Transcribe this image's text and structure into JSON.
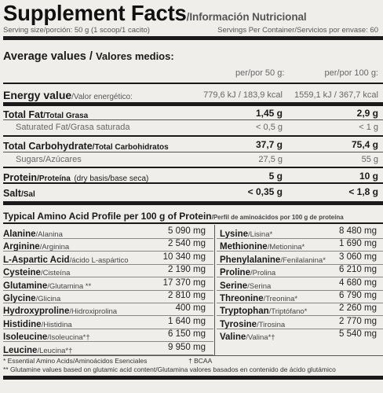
{
  "header": {
    "title": "Supplement Facts",
    "slash": "/",
    "subtitle": "Información Nutricional"
  },
  "serving": {
    "size": "Serving size/porción: 50 g (1 scoop/1 cacito)",
    "per_container": "Servings Per Container/Servicios por envase: 60"
  },
  "average": {
    "title": "Average values",
    "slash": "/",
    "title_es": "Valores medios:",
    "col1": "per/por 50 g:",
    "col2": "per/por 100 g:"
  },
  "nutrients": [
    {
      "name": "Energy value",
      "name_es": "/Valor energético:",
      "v1": "779,6 kJ / 183,9 kcal",
      "v2": "1559,1 kJ / 367,7 kcal"
    },
    {
      "name": "Total Fat",
      "name_es": "/Total Grasa",
      "v1": "1,45 g",
      "v2": "2,9 g"
    },
    {
      "name": "Saturated Fat/Grasa saturada",
      "name_es": "",
      "v1": "< 0,5 g",
      "v2": "< 1 g"
    },
    {
      "name": "Total Carbohydrate",
      "name_es": "/Total Carbohidratos",
      "v1": "37,7 g",
      "v2": "75,4 g"
    },
    {
      "name": "Sugars/Azúcares",
      "name_es": "",
      "v1": "27,5 g",
      "v2": "55 g"
    },
    {
      "name": "Protein",
      "name_es": "/Proteína",
      "extra": "(dry basis/base seca)",
      "v1": "5 g",
      "v2": "10 g"
    },
    {
      "name": "Salt",
      "name_es": "/Sal",
      "v1": "< 0,35 g",
      "v2": "< 1,8 g"
    }
  ],
  "amino": {
    "title": "Typical Amino Acid Profile per 100 g of Protein",
    "title_es": "/Perfil de aminoácidos por 100 g de proteína",
    "left": [
      {
        "name": "Alanine",
        "name_es": "/Alanina",
        "value": "5 090 mg"
      },
      {
        "name": "Arginine",
        "name_es": "/Arginina",
        "value": "2 540 mg"
      },
      {
        "name": "L-Aspartic Acid",
        "name_es": "/ácido L-aspártico",
        "value": "10 340 mg"
      },
      {
        "name": "Cysteine",
        "name_es": "/Cisteína",
        "value": "2 190 mg"
      },
      {
        "name": "Glutamine",
        "name_es": "/Glutamina **",
        "value": "17 370 mg"
      },
      {
        "name": "Glycine",
        "name_es": "/Glicina",
        "value": "2 810 mg"
      },
      {
        "name": "Hydroxyproline",
        "name_es": "/Hidroxiprolina",
        "value": "400 mg"
      },
      {
        "name": "Histidine",
        "name_es": "/Histidina",
        "value": "1 640 mg"
      },
      {
        "name": "Isoleucine",
        "name_es": "/Isoleucina*†",
        "value": "6 150 mg"
      },
      {
        "name": "Leucine",
        "name_es": "/Leucina*†",
        "value": "9 950 mg"
      }
    ],
    "right": [
      {
        "name": "Lysine",
        "name_es": "/Lisina*",
        "value": "8 480 mg"
      },
      {
        "name": "Methionine",
        "name_es": "/Metionina*",
        "value": "1 690 mg"
      },
      {
        "name": "Phenylalanine",
        "name_es": "/Fenilalanina*",
        "value": "3 060 mg"
      },
      {
        "name": "Proline",
        "name_es": "/Prolina",
        "value": "6 210 mg"
      },
      {
        "name": "Serine",
        "name_es": "/Serina",
        "value": "4 680 mg"
      },
      {
        "name": "Threonine",
        "name_es": "/Treonina*",
        "value": "6 790 mg"
      },
      {
        "name": "Tryptophan",
        "name_es": "/Triptófano*",
        "value": "2 260 mg"
      },
      {
        "name": "Tyrosine",
        "name_es": "/Tirosina",
        "value": "2 770 mg"
      },
      {
        "name": "Valine",
        "name_es": "/Valina*†",
        "value": "5 540 mg"
      }
    ]
  },
  "footnotes": {
    "f1a": "* Essential Amino Acids/Aminoácidos Esenciales",
    "f1b": "† BCAA",
    "f2": "** Glutamine values based on glutamic acid content/Glutamina valores basados en contenido de ácido glutámico"
  },
  "colors": {
    "background": "#efeeeb",
    "rule": "#1a1a1a",
    "text": "#1a1a1a"
  }
}
